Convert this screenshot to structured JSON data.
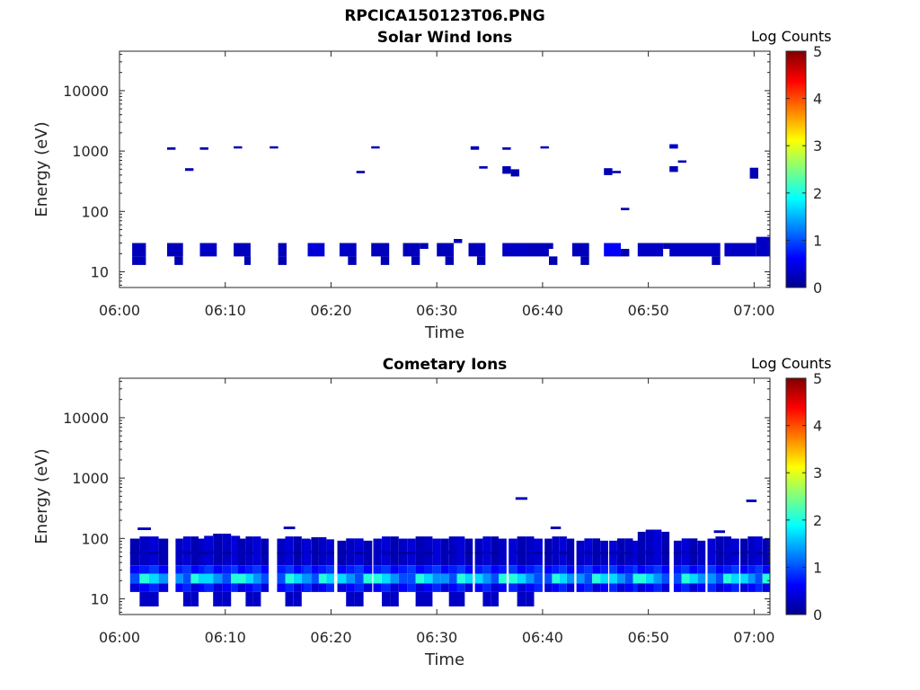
{
  "figure": {
    "title": "RPCICA150123T06.PNG"
  },
  "chart_data": [
    {
      "type": "heatmap",
      "title": "Solar Wind Ions",
      "xlabel": "Time",
      "ylabel": "Energy (eV)",
      "x_ticks": [
        "06:00",
        "06:10",
        "06:20",
        "06:30",
        "06:40",
        "06:50",
        "07:00"
      ],
      "x_range_minutes": [
        0,
        61.5
      ],
      "y_scale": "log",
      "y_range": [
        5.5,
        45000
      ],
      "y_ticks": [
        "10",
        "100",
        "1000",
        "10000"
      ],
      "colorbar": {
        "label": "Log Counts",
        "range": [
          0,
          5
        ],
        "ticks": [
          "0",
          "1",
          "2",
          "3",
          "4",
          "5"
        ],
        "colormap": "jet"
      },
      "cells": [
        [
          1.2,
          2.5,
          18,
          30,
          0.25
        ],
        [
          1.2,
          2.5,
          13,
          18,
          0.25
        ],
        [
          4.5,
          6.0,
          18,
          30,
          0.25
        ],
        [
          5.2,
          6.0,
          13,
          18,
          0.2
        ],
        [
          7.6,
          9.2,
          18,
          30,
          0.3
        ],
        [
          10.8,
          12.4,
          18,
          30,
          0.25
        ],
        [
          11.8,
          12.4,
          13,
          18,
          0.2
        ],
        [
          15.0,
          15.8,
          18,
          30,
          0.25
        ],
        [
          15.0,
          15.8,
          13,
          18,
          0.2
        ],
        [
          17.8,
          19.4,
          18,
          30,
          0.4
        ],
        [
          20.8,
          22.4,
          18,
          30,
          0.3
        ],
        [
          21.6,
          22.4,
          13,
          18,
          0.2
        ],
        [
          23.8,
          25.5,
          18,
          30,
          0.25
        ],
        [
          24.7,
          25.5,
          13,
          18,
          0.2
        ],
        [
          26.8,
          28.4,
          18,
          30,
          0.25
        ],
        [
          27.6,
          28.4,
          13,
          18,
          0.2
        ],
        [
          28.4,
          29.2,
          24,
          30,
          0.2
        ],
        [
          30.0,
          31.6,
          18,
          30,
          0.25
        ],
        [
          30.8,
          31.6,
          13,
          18,
          0.2
        ],
        [
          31.6,
          32.4,
          30,
          35,
          0.2
        ],
        [
          33.0,
          34.6,
          18,
          30,
          0.25
        ],
        [
          33.8,
          34.6,
          13,
          18,
          0.2
        ],
        [
          36.2,
          38.6,
          18,
          30,
          0.3
        ],
        [
          38.6,
          41.0,
          24,
          30,
          0.25
        ],
        [
          38.6,
          40.6,
          18,
          24,
          0.25
        ],
        [
          40.6,
          41.4,
          13,
          18,
          0.2
        ],
        [
          42.8,
          44.4,
          18,
          30,
          0.25
        ],
        [
          43.6,
          44.4,
          13,
          18,
          0.2
        ],
        [
          45.8,
          47.4,
          18,
          30,
          0.6
        ],
        [
          47.4,
          48.2,
          18,
          24,
          0.2
        ],
        [
          49.0,
          51.4,
          18,
          30,
          0.3
        ],
        [
          51.4,
          52.6,
          24,
          30,
          0.2
        ],
        [
          52.0,
          54.4,
          18,
          30,
          0.3
        ],
        [
          54.4,
          56.8,
          18,
          30,
          0.3
        ],
        [
          56.0,
          56.8,
          13,
          18,
          0.2
        ],
        [
          57.2,
          60.2,
          18,
          30,
          0.3
        ],
        [
          60.2,
          61.5,
          18,
          38,
          0.3
        ],
        [
          4.5,
          5.3,
          1050,
          1150,
          0.2
        ],
        [
          6.2,
          7.0,
          470,
          520,
          0.2
        ],
        [
          7.6,
          8.4,
          1050,
          1150,
          0.2
        ],
        [
          10.8,
          11.6,
          1100,
          1200,
          0.2
        ],
        [
          14.2,
          15.0,
          1100,
          1200,
          0.2
        ],
        [
          22.4,
          23.2,
          430,
          470,
          0.2
        ],
        [
          23.8,
          24.6,
          1100,
          1200,
          0.2
        ],
        [
          33.2,
          34.0,
          1050,
          1200,
          0.2
        ],
        [
          34.0,
          34.8,
          510,
          560,
          0.2
        ],
        [
          36.2,
          37.0,
          1050,
          1150,
          0.2
        ],
        [
          36.2,
          37.0,
          420,
          560,
          0.2
        ],
        [
          37.0,
          37.8,
          380,
          500,
          0.2
        ],
        [
          39.8,
          40.6,
          1100,
          1200,
          0.2
        ],
        [
          45.8,
          46.6,
          400,
          520,
          0.2
        ],
        [
          46.6,
          47.4,
          430,
          470,
          0.2
        ],
        [
          47.4,
          48.2,
          105,
          115,
          0.2
        ],
        [
          52.0,
          52.8,
          1100,
          1300,
          0.3
        ],
        [
          52.0,
          52.8,
          450,
          560,
          0.2
        ],
        [
          52.8,
          53.6,
          640,
          700,
          0.2
        ],
        [
          59.6,
          60.4,
          350,
          530,
          0.2
        ]
      ]
    },
    {
      "type": "heatmap",
      "title": "Cometary Ions",
      "xlabel": "Time",
      "ylabel": "Energy (eV)",
      "x_ticks": [
        "06:00",
        "06:10",
        "06:20",
        "06:30",
        "06:40",
        "06:50",
        "07:00"
      ],
      "x_range_minutes": [
        0,
        61.5
      ],
      "y_scale": "log",
      "y_range": [
        5.5,
        45000
      ],
      "y_ticks": [
        "10",
        "100",
        "1000",
        "10000"
      ],
      "colorbar": {
        "label": "Log Counts",
        "range": [
          0,
          5
        ],
        "ticks": [
          "0",
          "1",
          "2",
          "3",
          "4",
          "5"
        ],
        "colormap": "jet"
      },
      "bursts": [
        {
          "x": 1.0,
          "top": 108,
          "low": 7.5,
          "extra": 145,
          "width": 3.6
        },
        {
          "x": 5.3,
          "top": 108,
          "low": 7.5,
          "extra": 0,
          "width": 2.9
        },
        {
          "x": 8.0,
          "top": 120,
          "low": 7.5,
          "extra": 0,
          "width": 3.4
        },
        {
          "x": 11.2,
          "top": 108,
          "low": 7.5,
          "extra": 0,
          "width": 2.9
        },
        {
          "x": 14.9,
          "top": 108,
          "low": 7.5,
          "extra": 150,
          "width": 3.1
        },
        {
          "x": 17.4,
          "top": 105,
          "low": 12.5,
          "extra": 0,
          "width": 2.9
        },
        {
          "x": 20.6,
          "top": 100,
          "low": 7.5,
          "extra": 0,
          "width": 3.3
        },
        {
          "x": 24.0,
          "top": 108,
          "low": 7.5,
          "extra": 0,
          "width": 3.2
        },
        {
          "x": 27.2,
          "top": 108,
          "low": 7.5,
          "extra": 0,
          "width": 3.2
        },
        {
          "x": 30.4,
          "top": 108,
          "low": 7.5,
          "extra": 0,
          "width": 3.0
        },
        {
          "x": 33.6,
          "top": 108,
          "low": 7.5,
          "extra": 0,
          "width": 3.0
        },
        {
          "x": 36.8,
          "top": 108,
          "low": 7.5,
          "extra": 460,
          "width": 3.2
        },
        {
          "x": 40.2,
          "top": 108,
          "low": 12.5,
          "extra": 150,
          "width": 2.8
        },
        {
          "x": 43.2,
          "top": 100,
          "low": 12.5,
          "extra": 0,
          "width": 3.0
        },
        {
          "x": 46.3,
          "top": 100,
          "low": 12.5,
          "extra": 0,
          "width": 3.0
        },
        {
          "x": 49.0,
          "top": 140,
          "low": 12.5,
          "extra": 0,
          "width": 3.0
        },
        {
          "x": 52.4,
          "top": 100,
          "low": 12.5,
          "extra": 0,
          "width": 3.0
        },
        {
          "x": 55.6,
          "top": 108,
          "low": 12.5,
          "extra": 130,
          "width": 3.0
        },
        {
          "x": 58.7,
          "top": 108,
          "low": 12.5,
          "extra": 420,
          "width": 2.8
        }
      ]
    }
  ]
}
